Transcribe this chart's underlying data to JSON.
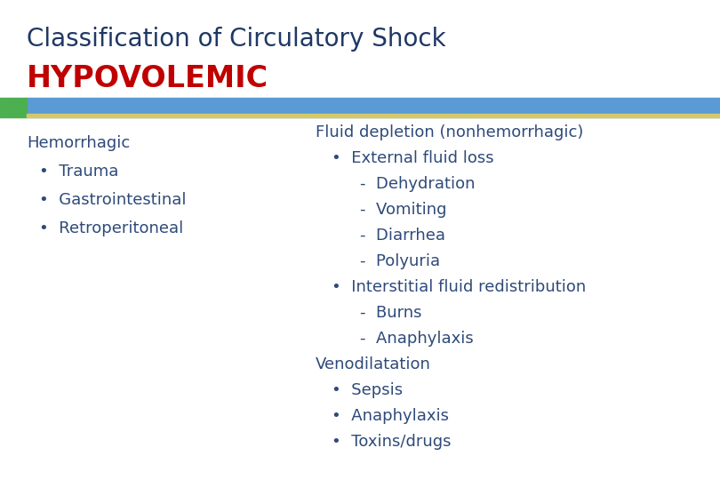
{
  "title_line1": "Classification of Circulatory Shock",
  "title_line2": "HYPOVOLEMIC",
  "title_color": "#1F3864",
  "hypo_color": "#C00000",
  "bg_color": "#FFFFFF",
  "bar_green": "#4CAF50",
  "bar_blue": "#5B9BD5",
  "bar_yellow": "#D4C86A",
  "text_color": "#2E4A7A",
  "fontsize_title": 20,
  "fontsize_hypo": 24,
  "fontsize_body": 13,
  "left_items": [
    {
      "text": "Hemorrhagic",
      "bullet": false,
      "dash": false
    },
    {
      "text": "Trauma",
      "bullet": true,
      "dash": false
    },
    {
      "text": "Gastrointestinal",
      "bullet": true,
      "dash": false
    },
    {
      "text": "Retroperitoneal",
      "bullet": true,
      "dash": false
    }
  ],
  "right_items": [
    {
      "text": "Fluid depletion (nonhemorrhagic)",
      "bullet": false,
      "dash": false,
      "indent": 0
    },
    {
      "text": "External fluid loss",
      "bullet": true,
      "dash": false,
      "indent": 1
    },
    {
      "text": "Dehydration",
      "bullet": false,
      "dash": true,
      "indent": 2
    },
    {
      "text": "Vomiting",
      "bullet": false,
      "dash": true,
      "indent": 2
    },
    {
      "text": "Diarrhea",
      "bullet": false,
      "dash": true,
      "indent": 2
    },
    {
      "text": "Polyuria",
      "bullet": false,
      "dash": true,
      "indent": 2
    },
    {
      "text": "Interstitial fluid redistribution",
      "bullet": true,
      "dash": false,
      "indent": 1
    },
    {
      "text": "Burns",
      "bullet": false,
      "dash": true,
      "indent": 2
    },
    {
      "text": "Anaphylaxis",
      "bullet": false,
      "dash": true,
      "indent": 2
    },
    {
      "text": "Venodilatation",
      "bullet": false,
      "dash": false,
      "indent": 0
    },
    {
      "text": "Sepsis",
      "bullet": true,
      "dash": false,
      "indent": 1
    },
    {
      "text": "Anaphylaxis",
      "bullet": true,
      "dash": false,
      "indent": 1
    },
    {
      "text": "Toxins/drugs",
      "bullet": true,
      "dash": false,
      "indent": 1
    }
  ]
}
